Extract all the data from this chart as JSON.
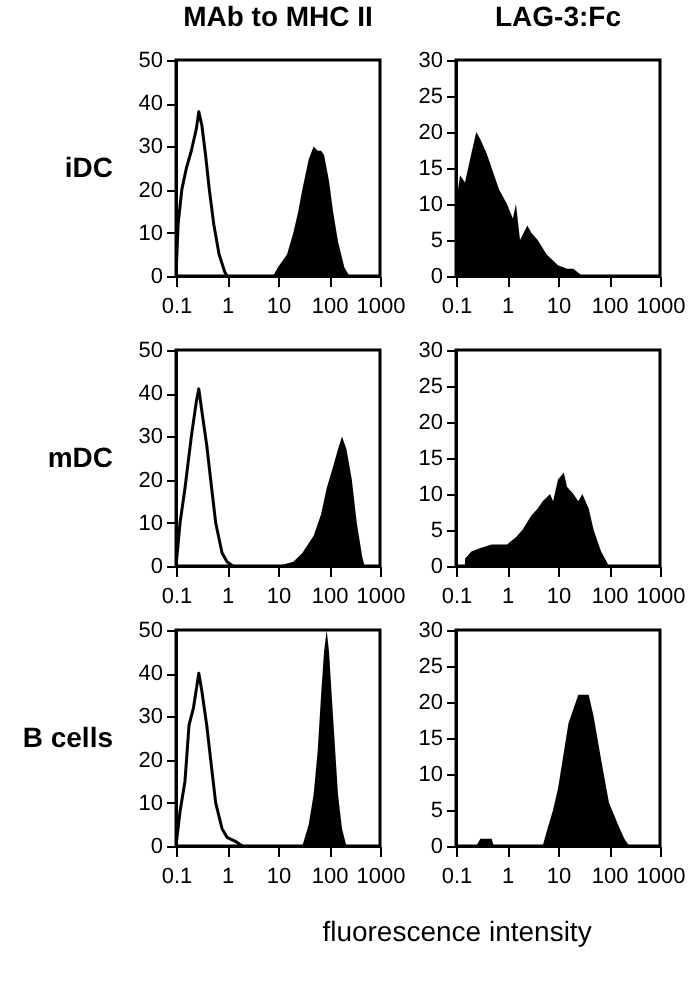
{
  "chart_data": [
    {
      "type": "area",
      "title": "MAb to MHC II",
      "ylabel": "iDC",
      "log": "x",
      "xlim": [
        0.1,
        1000
      ],
      "xticks": [
        0.1,
        1,
        10,
        100,
        1000
      ],
      "ylim": [
        0,
        50
      ],
      "yticks": [
        0,
        10,
        20,
        30,
        40,
        50
      ],
      "series": [
        {
          "type": "line",
          "color": "#000000",
          "x": [
            0.1,
            0.11,
            0.13,
            0.16,
            0.2,
            0.25,
            0.28,
            0.32,
            0.38,
            0.45,
            0.55,
            0.7,
            0.9,
            1.0
          ],
          "values": [
            0,
            12,
            20,
            25,
            29,
            34,
            38,
            35,
            28,
            20,
            12,
            5,
            1,
            0
          ]
        },
        {
          "type": "area",
          "color": "#000000",
          "x": [
            8,
            10,
            15,
            20,
            25,
            30,
            40,
            50,
            60,
            70,
            80,
            100,
            120,
            150,
            200,
            250
          ],
          "values": [
            0,
            2,
            5,
            10,
            15,
            20,
            27,
            30,
            29,
            29,
            28,
            22,
            15,
            8,
            2,
            0
          ]
        }
      ]
    },
    {
      "type": "area",
      "title": "LAG-3:Fc",
      "log": "x",
      "xlim": [
        0.1,
        1000
      ],
      "xticks": [
        0.1,
        1,
        10,
        100,
        1000
      ],
      "ylim": [
        0,
        30
      ],
      "yticks": [
        0,
        5,
        10,
        15,
        20,
        25,
        30
      ],
      "series": [
        {
          "type": "area",
          "color": "#000000",
          "x": [
            0.1,
            0.12,
            0.15,
            0.2,
            0.25,
            0.3,
            0.4,
            0.5,
            0.7,
            1,
            1.3,
            1.5,
            1.8,
            2.5,
            3,
            4,
            6,
            10,
            15,
            20,
            30
          ],
          "values": [
            10,
            14,
            13,
            17,
            20,
            19,
            17,
            15,
            12,
            10,
            8,
            10,
            5,
            7,
            6,
            5,
            3,
            1.5,
            1,
            1,
            0
          ]
        }
      ]
    },
    {
      "type": "area",
      "ylabel": "mDC",
      "log": "x",
      "xlim": [
        0.1,
        1000
      ],
      "xticks": [
        0.1,
        1,
        10,
        100,
        1000
      ],
      "ylim": [
        0,
        50
      ],
      "yticks": [
        0,
        10,
        20,
        30,
        40,
        50
      ],
      "series": [
        {
          "type": "line",
          "color": "#000000",
          "x": [
            0.1,
            0.12,
            0.15,
            0.2,
            0.25,
            0.28,
            0.32,
            0.4,
            0.5,
            0.6,
            0.8,
            1,
            1.3
          ],
          "values": [
            0,
            10,
            18,
            30,
            38,
            41,
            36,
            28,
            18,
            10,
            3,
            1,
            0
          ]
        },
        {
          "type": "area",
          "color": "#000000",
          "x": [
            10,
            20,
            30,
            50,
            70,
            90,
            120,
            150,
            180,
            220,
            280,
            350,
            450,
            500
          ],
          "values": [
            0,
            1,
            3,
            7,
            12,
            18,
            23,
            27,
            30,
            27,
            20,
            10,
            2,
            0
          ]
        }
      ]
    },
    {
      "type": "area",
      "log": "x",
      "xlim": [
        0.1,
        1000
      ],
      "xticks": [
        0.1,
        1,
        10,
        100,
        1000
      ],
      "ylim": [
        0,
        30
      ],
      "yticks": [
        0,
        5,
        10,
        15,
        20,
        25,
        30
      ],
      "series": [
        {
          "type": "area",
          "color": "#000000",
          "x": [
            0.15,
            0.2,
            0.3,
            0.5,
            0.8,
            1,
            1.5,
            2,
            3,
            4,
            5,
            7,
            8,
            10,
            13,
            15,
            20,
            25,
            30,
            40,
            50,
            70,
            100
          ],
          "values": [
            1,
            2,
            2.5,
            3,
            3,
            3,
            4,
            5,
            7,
            8,
            9,
            10,
            9,
            12,
            13,
            11,
            10,
            9,
            10,
            8,
            5,
            2,
            0
          ]
        }
      ]
    },
    {
      "type": "area",
      "ylabel": "B cells",
      "log": "x",
      "xlim": [
        0.1,
        1000
      ],
      "xticks": [
        0.1,
        1,
        10,
        100,
        1000
      ],
      "ylim": [
        0,
        50
      ],
      "yticks": [
        0,
        10,
        20,
        30,
        40,
        50
      ],
      "series": [
        {
          "type": "line",
          "color": "#000000",
          "x": [
            0.1,
            0.12,
            0.15,
            0.18,
            0.22,
            0.28,
            0.32,
            0.4,
            0.5,
            0.6,
            0.8,
            1,
            1.5,
            2
          ],
          "values": [
            0,
            8,
            15,
            28,
            32,
            40,
            36,
            28,
            18,
            10,
            4,
            2,
            1,
            0
          ]
        },
        {
          "type": "area",
          "color": "#000000",
          "x": [
            30,
            40,
            50,
            60,
            70,
            80,
            90,
            100,
            120,
            150,
            180,
            220
          ],
          "values": [
            0,
            5,
            12,
            22,
            35,
            45,
            50,
            45,
            30,
            12,
            4,
            0
          ]
        }
      ]
    },
    {
      "type": "area",
      "xlabel": "fluorescence intensity",
      "log": "x",
      "xlim": [
        0.1,
        1000
      ],
      "xticks": [
        0.1,
        1,
        10,
        100,
        1000
      ],
      "ylim": [
        0,
        30
      ],
      "yticks": [
        0,
        5,
        10,
        15,
        20,
        25,
        30
      ],
      "series": [
        {
          "type": "area",
          "color": "#000000",
          "x": [
            0.25,
            0.3,
            0.5,
            0.55,
            5,
            6,
            8,
            10,
            13,
            16,
            20,
            25,
            30,
            40,
            50,
            70,
            100,
            150,
            200,
            250
          ],
          "values": [
            0,
            1,
            1,
            0,
            0,
            2,
            5,
            8,
            13,
            17,
            19,
            21,
            21,
            21,
            18,
            12,
            6,
            3,
            1,
            0
          ]
        }
      ]
    }
  ]
}
